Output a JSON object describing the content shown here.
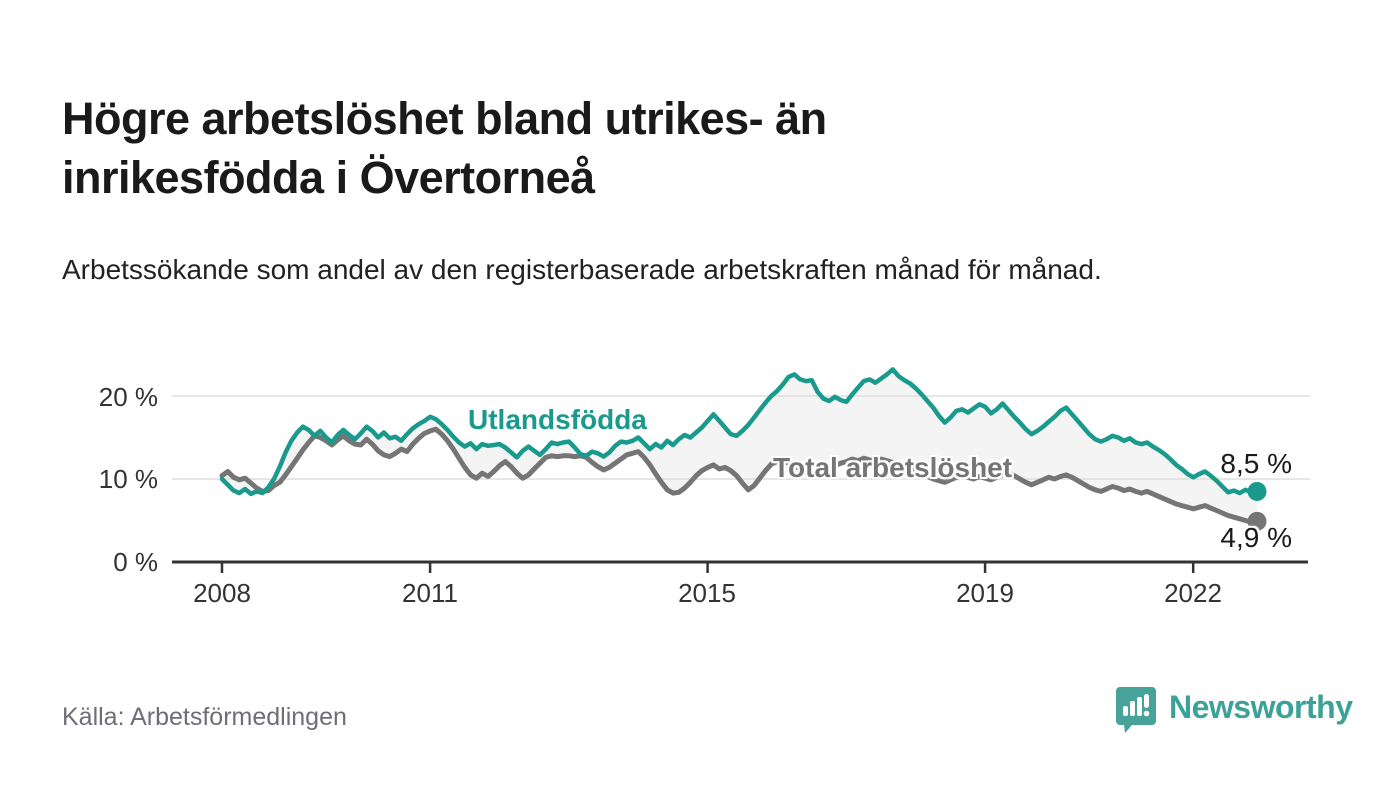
{
  "header": {
    "title": "Högre arbetslöshet bland utrikes- än inrikesfödda i Övertorneå",
    "subtitle": "Arbetssökande som andel av den registerbaserade arbetskraften månad för månad."
  },
  "footer": {
    "source": "Källa: Arbetsförmedlingen",
    "brand": "Newsworthy",
    "logo_icon": "bar-chart-speech-bubble"
  },
  "colors": {
    "series_teal": "#1a9a8c",
    "series_gray": "#757575",
    "grid_line": "#dddddd",
    "axis_line": "#333333",
    "area_fill": "#f4f4f4",
    "brand_teal": "#3ba199",
    "title_text": "#1a1a1a",
    "muted_text": "#6e6e76"
  },
  "chart_data": {
    "type": "line",
    "x_unit": "month",
    "x_start_year": 2008,
    "x_end_year": 2022.92,
    "x_tick_years": [
      2008,
      2011,
      2015,
      2019,
      2022
    ],
    "x_tick_labels": [
      "2008",
      "2011",
      "2015",
      "2019",
      "2022"
    ],
    "yticks": [
      0,
      10,
      20
    ],
    "y_tick_labels": [
      "0 %",
      "10 %",
      "20 %"
    ],
    "ylim": [
      0,
      24
    ],
    "grid": "on",
    "legend_position": "inline-labels",
    "area_fill_between": "#f4f4f4",
    "series": [
      {
        "name": "Utlandsfödda",
        "color": "#1a9a8c",
        "end_label": "8,5 %",
        "end_value": 8.5,
        "values": [
          10.0,
          9.3,
          8.6,
          8.3,
          8.8,
          8.2,
          8.5,
          8.3,
          9.0,
          10.0,
          11.5,
          13.2,
          14.6,
          15.6,
          16.3,
          15.9,
          15.2,
          15.8,
          15.0,
          14.4,
          15.3,
          15.9,
          15.3,
          14.8,
          15.5,
          16.3,
          15.8,
          15.0,
          15.6,
          14.9,
          15.1,
          14.6,
          15.4,
          16.1,
          16.6,
          17.0,
          17.5,
          17.2,
          16.6,
          15.9,
          15.1,
          14.4,
          13.9,
          14.3,
          13.6,
          14.2,
          14.0,
          14.1,
          14.2,
          13.8,
          13.2,
          12.6,
          13.4,
          13.9,
          13.4,
          12.9,
          13.6,
          14.4,
          14.2,
          14.4,
          14.5,
          13.8,
          13.0,
          12.8,
          13.3,
          13.1,
          12.7,
          13.2,
          14.0,
          14.5,
          14.4,
          14.6,
          15.0,
          14.3,
          13.6,
          14.2,
          13.8,
          14.6,
          14.1,
          14.8,
          15.3,
          15.0,
          15.6,
          16.2,
          17.0,
          17.8,
          17.0,
          16.2,
          15.4,
          15.2,
          15.8,
          16.5,
          17.4,
          18.3,
          19.2,
          20.0,
          20.6,
          21.4,
          22.3,
          22.6,
          22.0,
          21.8,
          21.9,
          20.5,
          19.7,
          19.4,
          19.9,
          19.5,
          19.3,
          20.2,
          21.0,
          21.8,
          22.0,
          21.6,
          22.1,
          22.6,
          23.2,
          22.4,
          21.9,
          21.5,
          20.9,
          20.2,
          19.4,
          18.6,
          17.6,
          16.8,
          17.4,
          18.2,
          18.4,
          18.0,
          18.5,
          19.0,
          18.7,
          17.9,
          18.4,
          19.1,
          18.3,
          17.5,
          16.8,
          16.0,
          15.4,
          15.8,
          16.3,
          16.9,
          17.5,
          18.2,
          18.6,
          17.8,
          17.0,
          16.2,
          15.4,
          14.8,
          14.5,
          14.8,
          15.2,
          15.0,
          14.6,
          14.9,
          14.4,
          14.2,
          14.4,
          13.9,
          13.5,
          13.0,
          12.4,
          11.7,
          11.2,
          10.6,
          10.2,
          10.6,
          10.9,
          10.4,
          9.8,
          9.1,
          8.4,
          8.6,
          8.3,
          8.7,
          8.4,
          8.5
        ]
      },
      {
        "name": "Total arbetslöshet",
        "color": "#757575",
        "end_label": "4,9 %",
        "end_value": 4.9,
        "values": [
          10.4,
          10.9,
          10.2,
          9.9,
          10.1,
          9.5,
          8.9,
          8.5,
          8.6,
          9.2,
          9.6,
          10.5,
          11.5,
          12.5,
          13.5,
          14.4,
          15.2,
          15.0,
          14.6,
          14.1,
          14.7,
          15.2,
          14.6,
          14.2,
          14.1,
          14.8,
          14.2,
          13.4,
          12.9,
          12.7,
          13.1,
          13.6,
          13.3,
          14.2,
          14.9,
          15.5,
          15.8,
          16.0,
          15.4,
          14.6,
          13.6,
          12.5,
          11.4,
          10.5,
          10.1,
          10.7,
          10.3,
          10.9,
          11.6,
          12.1,
          11.5,
          10.7,
          10.1,
          10.5,
          11.2,
          11.9,
          12.6,
          12.8,
          12.7,
          12.8,
          12.8,
          12.7,
          12.8,
          12.6,
          12.0,
          11.5,
          11.1,
          11.4,
          11.9,
          12.4,
          12.9,
          13.1,
          13.3,
          12.6,
          11.7,
          10.6,
          9.6,
          8.7,
          8.3,
          8.4,
          8.9,
          9.6,
          10.4,
          11.0,
          11.4,
          11.7,
          11.2,
          11.4,
          11.0,
          10.4,
          9.5,
          8.7,
          9.2,
          10.1,
          11.0,
          11.8,
          12.1,
          11.9,
          12.0,
          11.6,
          11.2,
          11.0,
          10.7,
          10.4,
          10.8,
          11.2,
          11.6,
          11.9,
          12.1,
          12.4,
          12.2,
          12.5,
          12.3,
          12.1,
          12.4,
          12.2,
          12.0,
          11.7,
          11.4,
          11.2,
          10.9,
          10.6,
          10.3,
          10.0,
          9.8,
          9.6,
          9.9,
          10.2,
          10.4,
          10.2,
          10.0,
          10.3,
          10.1,
          9.9,
          10.2,
          10.5,
          10.7,
          10.4,
          10.0,
          9.6,
          9.3,
          9.6,
          9.9,
          10.2,
          10.0,
          10.3,
          10.5,
          10.2,
          9.8,
          9.4,
          9.0,
          8.7,
          8.5,
          8.8,
          9.1,
          8.9,
          8.6,
          8.8,
          8.5,
          8.3,
          8.5,
          8.2,
          7.9,
          7.6,
          7.3,
          7.0,
          6.8,
          6.6,
          6.4,
          6.6,
          6.8,
          6.5,
          6.2,
          5.9,
          5.6,
          5.4,
          5.2,
          5.0,
          4.8,
          4.9
        ]
      }
    ]
  }
}
